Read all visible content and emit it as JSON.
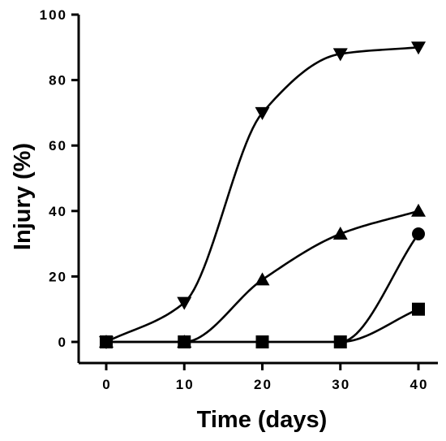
{
  "chart_data": {
    "type": "line",
    "title": "",
    "xlabel": "Time (days)",
    "ylabel": "Injury (%)",
    "xlim": [
      0,
      40
    ],
    "ylim": [
      0,
      100
    ],
    "x_ticks": [
      0,
      10,
      20,
      30,
      40
    ],
    "y_ticks": [
      0,
      20,
      40,
      60,
      80,
      100
    ],
    "grid": false,
    "legend": "none",
    "x": [
      0,
      10,
      20,
      30,
      40
    ],
    "series": [
      {
        "marker": "triangle-down",
        "values": [
          0,
          12,
          70,
          88,
          90
        ]
      },
      {
        "marker": "triangle-up",
        "values": [
          0,
          0,
          19,
          33,
          40
        ]
      },
      {
        "marker": "circle",
        "values": [
          0,
          0,
          0,
          0,
          33
        ]
      },
      {
        "marker": "square",
        "values": [
          0,
          0,
          0,
          0,
          10
        ]
      }
    ]
  }
}
